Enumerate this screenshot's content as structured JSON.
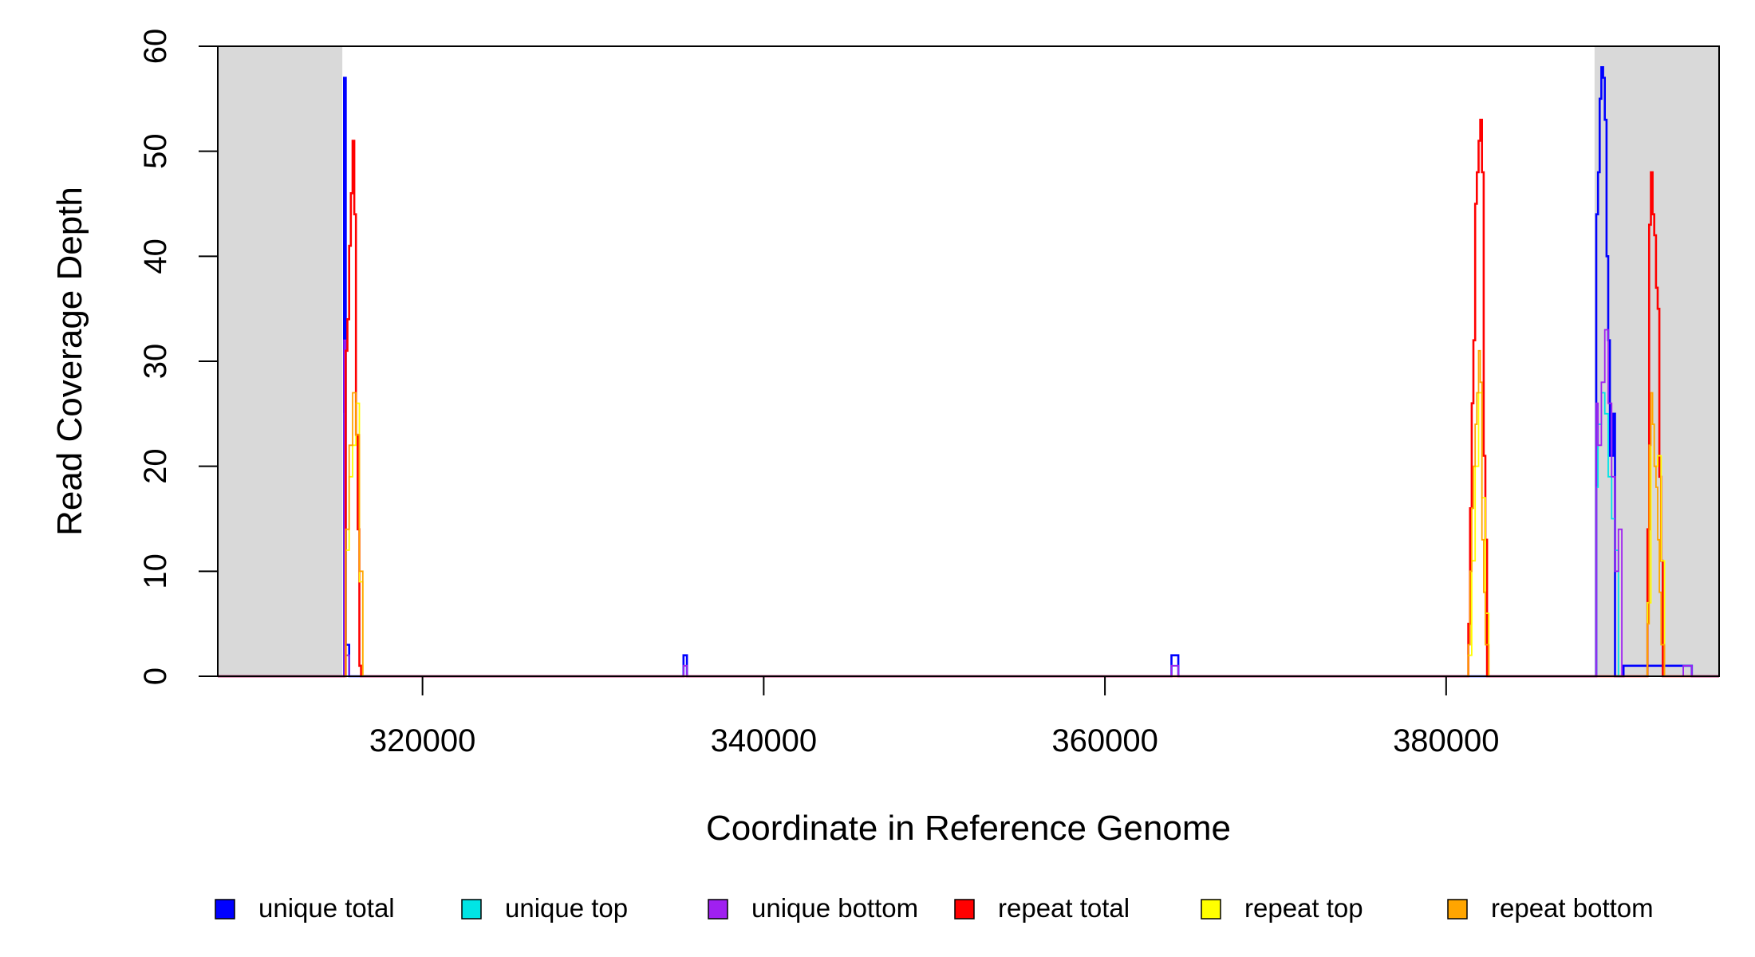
{
  "chart_data": {
    "type": "line",
    "title": "",
    "xlabel": "Coordinate in Reference Genome",
    "ylabel": "Read Coverage Depth",
    "xlim": [
      308000,
      396000
    ],
    "ylim": [
      0,
      60
    ],
    "x_ticks": [
      320000,
      340000,
      360000,
      380000
    ],
    "y_ticks": [
      0,
      10,
      20,
      30,
      40,
      50,
      60
    ],
    "x_tick_labels": [
      "320000",
      "340000",
      "360000",
      "380000"
    ],
    "y_tick_labels": [
      "0",
      "10",
      "20",
      "30",
      "40",
      "50",
      "60"
    ],
    "grid": false,
    "legend_position": "bottom",
    "shaded_regions": [
      {
        "x0": 308000,
        "x1": 315300,
        "color": "#d9d9d9"
      },
      {
        "x0": 388700,
        "x1": 396000,
        "color": "#d9d9d9"
      }
    ],
    "series": [
      {
        "name": "unique total",
        "color": "#0000ff",
        "width": 2.6,
        "x": [
          308000,
          315400,
          315400,
          315500,
          315500,
          315700,
          315700,
          335300,
          335300,
          335500,
          335500,
          363900,
          363900,
          364300,
          364300,
          388800,
          388800,
          388900,
          388900,
          389000,
          389000,
          389100,
          389100,
          389200,
          389200,
          389300,
          389300,
          389400,
          389400,
          389500,
          389500,
          389600,
          389600,
          389700,
          389700,
          389800,
          389800,
          389900,
          389900,
          390100,
          390100,
          390300,
          390300,
          390400,
          390400,
          393900,
          393900,
          394400,
          394400,
          394800,
          394800,
          396000
        ],
        "y": [
          0,
          0,
          57,
          57,
          3,
          3,
          0,
          0,
          2,
          2,
          0,
          0,
          2,
          2,
          0,
          0,
          44,
          44,
          48,
          48,
          55,
          55,
          58,
          58,
          57,
          57,
          53,
          53,
          40,
          40,
          32,
          32,
          21,
          21,
          21,
          21,
          25,
          25,
          0,
          0,
          0,
          0,
          0,
          0,
          1,
          1,
          1,
          1,
          0,
          0,
          0,
          0
        ]
      },
      {
        "name": "unique top",
        "color": "#00e5e5",
        "width": 1.8,
        "x": [
          308000,
          315400,
          315400,
          315500,
          315500,
          315700,
          315700,
          335300,
          335300,
          335500,
          335500,
          363900,
          363900,
          364300,
          364300,
          388800,
          388800,
          388900,
          388900,
          389100,
          389100,
          389300,
          389300,
          389500,
          389500,
          389700,
          389700,
          389900,
          389900,
          390100,
          390100,
          393900,
          393900,
          394400,
          394400,
          396000
        ],
        "y": [
          0,
          0,
          25,
          25,
          2,
          2,
          0,
          0,
          1,
          1,
          0,
          0,
          1,
          1,
          0,
          0,
          18,
          18,
          24,
          24,
          27,
          27,
          25,
          25,
          19,
          19,
          15,
          15,
          12,
          12,
          0,
          0,
          1,
          1,
          0,
          0
        ]
      },
      {
        "name": "unique bottom",
        "color": "#a020f0",
        "width": 1.8,
        "x": [
          308000,
          315400,
          315400,
          315500,
          315500,
          315700,
          315700,
          335300,
          335300,
          335500,
          335500,
          363900,
          363900,
          364300,
          364300,
          388800,
          388800,
          388900,
          388900,
          389100,
          389100,
          389300,
          389300,
          389500,
          389500,
          389700,
          389700,
          389900,
          389900,
          390100,
          390100,
          390300,
          390300,
          393900,
          393900,
          394400,
          394400,
          396000
        ],
        "y": [
          0,
          0,
          32,
          32,
          2,
          2,
          0,
          0,
          1,
          1,
          0,
          0,
          1,
          1,
          0,
          0,
          26,
          26,
          22,
          22,
          28,
          28,
          33,
          33,
          26,
          26,
          19,
          19,
          10,
          10,
          14,
          14,
          0,
          0,
          1,
          1,
          0,
          0
        ]
      },
      {
        "name": "repeat total",
        "color": "#ff0000",
        "width": 2.6,
        "x": [
          308000,
          315500,
          315500,
          315600,
          315600,
          315700,
          315700,
          315800,
          315800,
          315900,
          315900,
          316000,
          316000,
          316100,
          316100,
          316200,
          316200,
          316300,
          316300,
          316400,
          316400,
          316500,
          316500,
          316600,
          316600,
          381300,
          381300,
          381400,
          381400,
          381500,
          381500,
          381600,
          381600,
          381700,
          381700,
          381800,
          381800,
          381900,
          381900,
          382000,
          382000,
          382100,
          382100,
          382200,
          382200,
          382300,
          382300,
          382400,
          382400,
          382500,
          382500,
          382600,
          382600,
          391800,
          391800,
          391900,
          391900,
          392000,
          392000,
          392100,
          392100,
          392200,
          392200,
          392300,
          392300,
          392400,
          392400,
          392500,
          392500,
          392600,
          392600,
          392700,
          392700,
          392800,
          392800,
          396000
        ],
        "y": [
          0,
          0,
          31,
          31,
          34,
          34,
          41,
          41,
          46,
          46,
          51,
          51,
          44,
          44,
          23,
          23,
          14,
          14,
          1,
          1,
          0,
          0,
          0,
          0,
          0,
          0,
          5,
          5,
          16,
          16,
          26,
          26,
          32,
          32,
          45,
          45,
          48,
          48,
          51,
          51,
          53,
          53,
          48,
          48,
          21,
          21,
          13,
          13,
          0,
          0,
          0,
          0,
          0,
          0,
          14,
          14,
          43,
          43,
          48,
          48,
          44,
          44,
          42,
          42,
          37,
          37,
          35,
          35,
          19,
          19,
          11,
          11,
          0,
          0,
          0,
          0
        ]
      },
      {
        "name": "repeat top",
        "color": "#ffff00",
        "width": 1.8,
        "x": [
          308000,
          315500,
          315500,
          315700,
          315700,
          315900,
          315900,
          316100,
          316100,
          316300,
          316300,
          316500,
          316500,
          381300,
          381300,
          381500,
          381500,
          381700,
          381700,
          381900,
          381900,
          382100,
          382100,
          382300,
          382300,
          382500,
          382500,
          391800,
          391800,
          392000,
          392000,
          392200,
          392200,
          392400,
          392400,
          392600,
          392600,
          392800,
          392800,
          396000
        ],
        "y": [
          0,
          0,
          12,
          12,
          19,
          19,
          22,
          22,
          26,
          26,
          9,
          9,
          0,
          0,
          2,
          2,
          11,
          11,
          20,
          20,
          27,
          27,
          17,
          17,
          6,
          6,
          0,
          0,
          7,
          7,
          24,
          24,
          20,
          20,
          21,
          21,
          11,
          11,
          0,
          0
        ]
      },
      {
        "name": "repeat bottom",
        "color": "#ffa500",
        "width": 1.8,
        "x": [
          308000,
          315500,
          315500,
          315700,
          315700,
          315900,
          315900,
          316100,
          316100,
          316300,
          316300,
          316500,
          316500,
          381300,
          381300,
          381400,
          381400,
          381500,
          381500,
          381600,
          381600,
          381700,
          381700,
          381800,
          381800,
          381900,
          381900,
          382000,
          382000,
          382100,
          382100,
          382200,
          382200,
          382300,
          382300,
          382500,
          382500,
          391800,
          391800,
          391900,
          391900,
          392000,
          392000,
          392100,
          392100,
          392200,
          392200,
          392300,
          392300,
          392400,
          392400,
          392500,
          392500,
          392600,
          392600,
          392800,
          392800,
          396000
        ],
        "y": [
          0,
          0,
          14,
          14,
          22,
          22,
          27,
          27,
          23,
          23,
          10,
          10,
          0,
          0,
          3,
          3,
          10,
          10,
          16,
          16,
          20,
          20,
          24,
          24,
          27,
          27,
          31,
          31,
          28,
          28,
          13,
          13,
          8,
          8,
          3,
          3,
          0,
          0,
          5,
          5,
          22,
          22,
          27,
          27,
          24,
          24,
          20,
          20,
          18,
          18,
          13,
          13,
          8,
          8,
          3,
          3,
          0,
          0
        ]
      }
    ]
  }
}
